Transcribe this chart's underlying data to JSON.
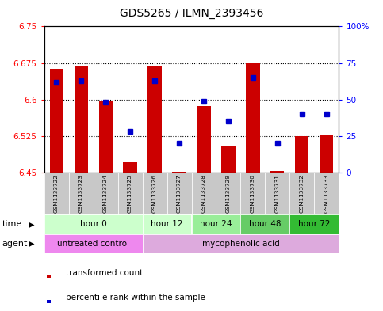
{
  "title": "GDS5265 / ILMN_2393456",
  "samples": [
    "GSM1133722",
    "GSM1133723",
    "GSM1133724",
    "GSM1133725",
    "GSM1133726",
    "GSM1133727",
    "GSM1133728",
    "GSM1133729",
    "GSM1133730",
    "GSM1133731",
    "GSM1133732",
    "GSM1133733"
  ],
  "bar_values": [
    6.663,
    6.668,
    6.597,
    6.471,
    6.669,
    6.452,
    6.587,
    6.505,
    6.676,
    6.453,
    6.525,
    6.528
  ],
  "bar_base": 6.45,
  "percentile_values": [
    62,
    63,
    48,
    28,
    63,
    20,
    49,
    35,
    65,
    20,
    40,
    40
  ],
  "ylim_left": [
    6.45,
    6.75
  ],
  "ylim_right": [
    0,
    100
  ],
  "yticks_left": [
    6.45,
    6.525,
    6.6,
    6.675,
    6.75
  ],
  "ytick_labels_left": [
    "6.45",
    "6.525",
    "6.6",
    "6.675",
    "6.75"
  ],
  "yticks_right": [
    0,
    25,
    50,
    75,
    100
  ],
  "ytick_labels_right": [
    "0",
    "25",
    "50",
    "75",
    "100%"
  ],
  "dotted_lines": [
    6.525,
    6.6,
    6.675
  ],
  "bar_color": "#cc0000",
  "dot_color": "#0000cc",
  "time_groups": [
    {
      "label": "hour 0",
      "start": 0,
      "end": 4,
      "color": "#ccffcc"
    },
    {
      "label": "hour 12",
      "start": 4,
      "end": 6,
      "color": "#ccffcc"
    },
    {
      "label": "hour 24",
      "start": 6,
      "end": 8,
      "color": "#99ee99"
    },
    {
      "label": "hour 48",
      "start": 8,
      "end": 10,
      "color": "#66cc66"
    },
    {
      "label": "hour 72",
      "start": 10,
      "end": 12,
      "color": "#33bb33"
    }
  ],
  "agent_groups": [
    {
      "label": "untreated control",
      "start": 0,
      "end": 4,
      "color": "#ee88ee"
    },
    {
      "label": "mycophenolic acid",
      "start": 4,
      "end": 12,
      "color": "#ddaadd"
    }
  ],
  "bg_color": "#ffffff",
  "sample_bg_color": "#c8c8c8",
  "time_label": "time",
  "agent_label": "agent",
  "legend_bar_label": "transformed count",
  "legend_dot_label": "percentile rank within the sample"
}
